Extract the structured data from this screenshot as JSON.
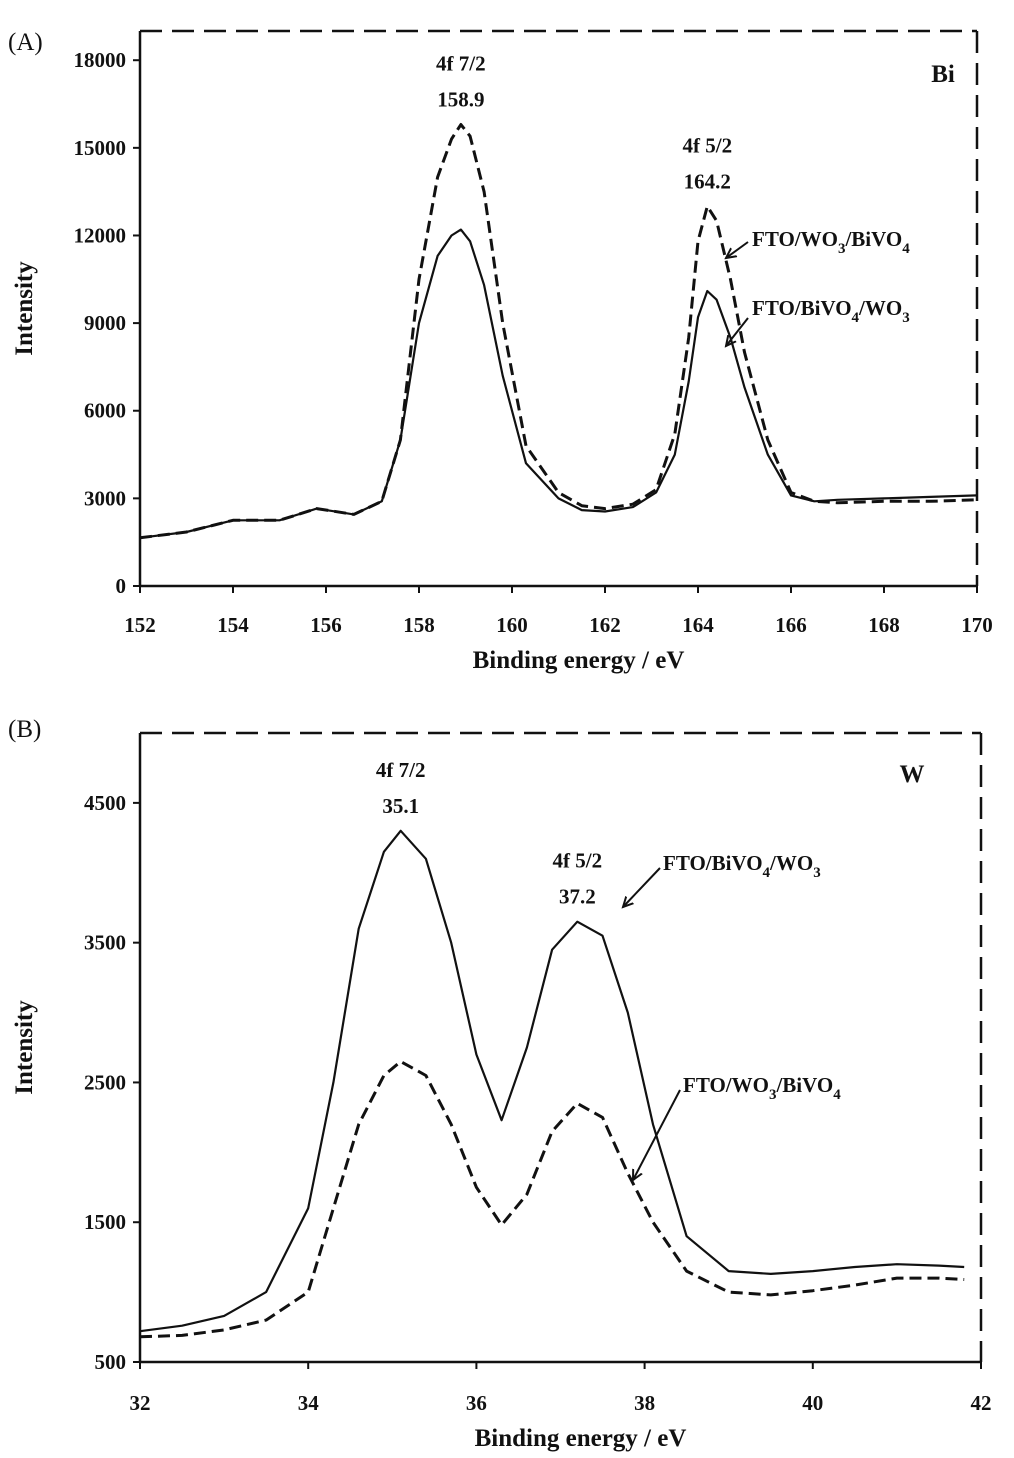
{
  "chart_data": [
    {
      "type": "line",
      "panel_label": "(A)",
      "element_label": "Bi",
      "xlabel": "Binding energy / eV",
      "ylabel": "Intensity",
      "xlim": [
        152,
        170
      ],
      "ylim": [
        0,
        19000
      ],
      "xticks": [
        152,
        154,
        156,
        158,
        160,
        162,
        164,
        166,
        168,
        170
      ],
      "yticks": [
        0,
        3000,
        6000,
        9000,
        12000,
        15000,
        18000
      ],
      "grid": false,
      "frame": "dashed",
      "series": [
        {
          "label_parts": [
            "FTO/WO",
            "3",
            "/BiVO",
            "4"
          ],
          "style": "dashed",
          "x": [
            152,
            153,
            154,
            155,
            155.8,
            156.6,
            157.2,
            157.6,
            158.0,
            158.4,
            158.7,
            158.9,
            159.1,
            159.4,
            159.8,
            160.3,
            161.0,
            161.5,
            162.0,
            162.6,
            163.1,
            163.5,
            163.8,
            164.0,
            164.2,
            164.4,
            164.7,
            165.0,
            165.5,
            166.0,
            166.5,
            167.0,
            168.0,
            169.0,
            170.0
          ],
          "y": [
            1650,
            1850,
            2250,
            2250,
            2650,
            2450,
            2900,
            5000,
            10500,
            14000,
            15300,
            15800,
            15400,
            13500,
            9000,
            4800,
            3200,
            2750,
            2650,
            2800,
            3300,
            5200,
            8500,
            11800,
            13000,
            12500,
            10500,
            8000,
            5000,
            3200,
            2900,
            2850,
            2900,
            2900,
            2950
          ]
        },
        {
          "label_parts": [
            "FTO/BiVO",
            "4",
            "/WO",
            "3"
          ],
          "style": "solid",
          "x": [
            152,
            153,
            154,
            155,
            155.8,
            156.6,
            157.2,
            157.6,
            158.0,
            158.4,
            158.7,
            158.9,
            159.1,
            159.4,
            159.8,
            160.3,
            161.0,
            161.5,
            162.0,
            162.6,
            163.1,
            163.5,
            163.8,
            164.0,
            164.2,
            164.4,
            164.7,
            165.0,
            165.5,
            166.0,
            166.5,
            167.0,
            168.0,
            169.0,
            170.0
          ],
          "y": [
            1650,
            1850,
            2250,
            2250,
            2650,
            2450,
            2900,
            5000,
            9000,
            11300,
            12000,
            12200,
            11800,
            10300,
            7200,
            4200,
            3000,
            2600,
            2550,
            2700,
            3200,
            4500,
            7000,
            9200,
            10100,
            9800,
            8500,
            6800,
            4500,
            3100,
            2900,
            2950,
            3000,
            3050,
            3100
          ]
        }
      ],
      "annotations": [
        {
          "lines": [
            "4f 7/2",
            "158.9"
          ]
        },
        {
          "lines": [
            "4f 5/2",
            "164.2"
          ]
        }
      ]
    },
    {
      "type": "line",
      "panel_label": "(B)",
      "element_label": "W",
      "xlabel": "Binding energy / eV",
      "ylabel": "Intensity",
      "xlim": [
        32,
        42
      ],
      "ylim": [
        500,
        5000
      ],
      "xticks": [
        32,
        34,
        36,
        38,
        40,
        42
      ],
      "yticks": [
        500,
        1500,
        2500,
        3500,
        4500
      ],
      "grid": false,
      "frame": "dashed",
      "series": [
        {
          "label_parts": [
            "FTO/BiVO",
            "4",
            "/WO",
            "3"
          ],
          "style": "solid",
          "x": [
            32,
            32.5,
            33,
            33.5,
            34,
            34.3,
            34.6,
            34.9,
            35.1,
            35.4,
            35.7,
            36.0,
            36.3,
            36.6,
            36.9,
            37.2,
            37.5,
            37.8,
            38.1,
            38.5,
            39.0,
            39.5,
            40.0,
            40.5,
            41.0,
            41.5,
            41.8
          ],
          "y": [
            720,
            760,
            830,
            1000,
            1600,
            2500,
            3600,
            4150,
            4300,
            4100,
            3500,
            2700,
            2230,
            2750,
            3450,
            3650,
            3550,
            3000,
            2200,
            1400,
            1150,
            1130,
            1150,
            1180,
            1200,
            1190,
            1180
          ]
        },
        {
          "label_parts": [
            "FTO/WO",
            "3",
            "/BiVO",
            "4"
          ],
          "style": "dashed",
          "x": [
            32,
            32.5,
            33,
            33.5,
            34,
            34.3,
            34.6,
            34.9,
            35.1,
            35.4,
            35.7,
            36.0,
            36.3,
            36.6,
            36.9,
            37.2,
            37.5,
            37.8,
            38.1,
            38.5,
            39.0,
            39.5,
            40.0,
            40.5,
            41.0,
            41.5,
            41.8
          ],
          "y": [
            680,
            690,
            730,
            800,
            1000,
            1600,
            2200,
            2550,
            2650,
            2550,
            2200,
            1750,
            1480,
            1700,
            2150,
            2350,
            2250,
            1850,
            1500,
            1150,
            1000,
            980,
            1010,
            1050,
            1100,
            1100,
            1090
          ]
        }
      ],
      "annotations": [
        {
          "lines": [
            "4f 7/2",
            "35.1"
          ]
        },
        {
          "lines": [
            "4f 5/2",
            "37.2"
          ]
        }
      ]
    }
  ]
}
